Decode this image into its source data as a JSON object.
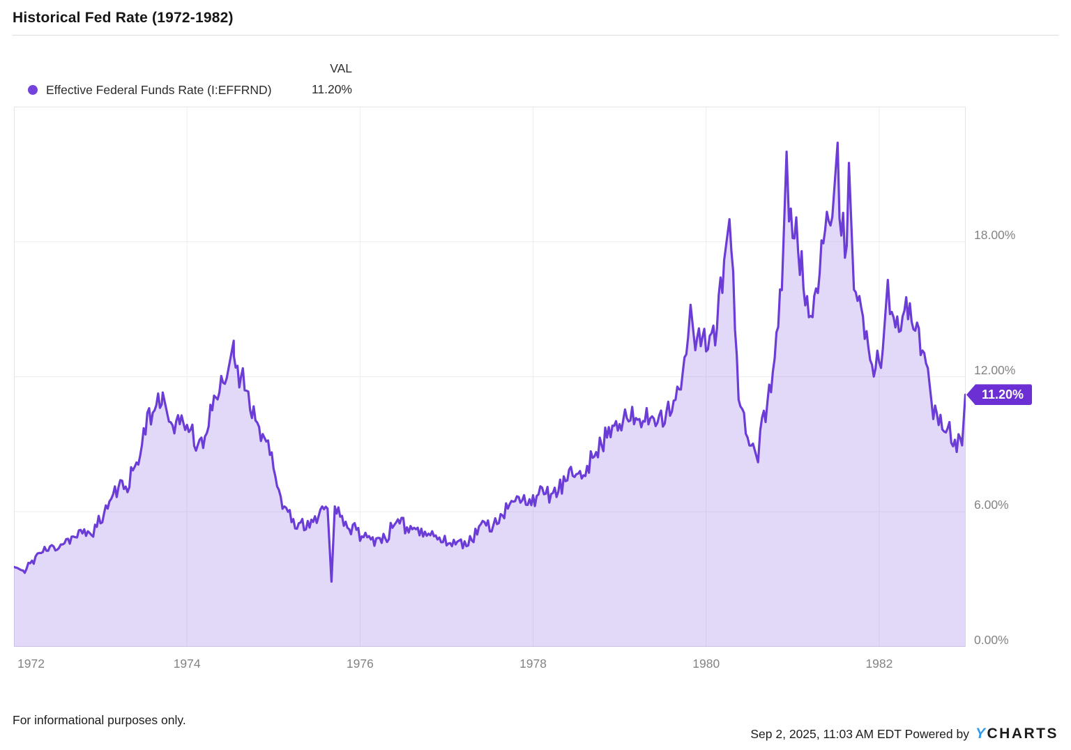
{
  "header": {
    "title": "Historical Fed Rate (1972-1982)"
  },
  "legend": {
    "val_header": "VAL",
    "series": {
      "label": "Effective Federal Funds Rate (I:EFFRND)",
      "value": "11.20%"
    }
  },
  "footer": {
    "disclaimer": "For informational purposes only.",
    "timestamp": "Sep 2, 2025, 11:03 AM EDT",
    "powered_by": "Powered by",
    "brand": {
      "y": "Y",
      "charts": "CHARTS"
    }
  },
  "colors": {
    "line": "#6b3cd6",
    "fill": "rgba(123,80,222,0.22)",
    "badge": "#6c2fd3",
    "legend_dot": "#7443db",
    "grid": "#ededed",
    "plot_border": "#e4e4e4",
    "axis_text": "#838383",
    "brand_blue": "#2e9bf0"
  },
  "chart_data": {
    "type": "area",
    "title": "Historical Fed Rate (1972-1982)",
    "series_name": "Effective Federal Funds Rate (I:EFFRND)",
    "x_axis": {
      "min": 1972,
      "max": 1983,
      "grid": true,
      "ticks": [
        {
          "label": "1972",
          "year": 1972
        },
        {
          "label": "1974",
          "year": 1974
        },
        {
          "label": "1976",
          "year": 1976
        },
        {
          "label": "1978",
          "year": 1978
        },
        {
          "label": "1980",
          "year": 1980
        },
        {
          "label": "1982",
          "year": 1982
        }
      ]
    },
    "y_axis": {
      "min": 0,
      "max": 24,
      "unit": "%",
      "grid": true,
      "ticks": [
        {
          "label": "0.00%",
          "value": 0
        },
        {
          "label": "6.00%",
          "value": 6
        },
        {
          "label": "12.00%",
          "value": 12
        },
        {
          "label": "18.00%",
          "value": 18
        }
      ]
    },
    "start_value": 3.55,
    "monthly_start": "1972-01",
    "monthly_values": [
      3.5,
      3.29,
      3.83,
      4.17,
      4.27,
      4.46,
      4.55,
      4.8,
      4.87,
      5.04,
      5.06,
      5.33,
      5.94,
      6.58,
      7.09,
      7.12,
      7.84,
      8.49,
      10.4,
      10.5,
      10.78,
      10.01,
      10.03,
      9.95,
      9.65,
      8.97,
      9.35,
      10.51,
      11.31,
      11.93,
      12.92,
      12.01,
      11.34,
      10.06,
      9.45,
      8.53,
      7.13,
      6.24,
      5.54,
      5.49,
      5.22,
      5.55,
      6.1,
      6.14,
      6.24,
      5.82,
      5.22,
      5.2,
      4.87,
      4.77,
      4.84,
      4.82,
      5.29,
      5.48,
      5.31,
      5.29,
      5.25,
      5.03,
      4.95,
      4.65,
      4.61,
      4.68,
      4.69,
      4.73,
      5.35,
      5.39,
      5.42,
      5.9,
      6.14,
      6.47,
      6.51,
      6.56,
      6.7,
      6.78,
      6.79,
      6.89,
      7.36,
      7.6,
      7.81,
      8.04,
      8.45,
      8.96,
      9.76,
      10.03,
      10.07,
      10.06,
      10.09,
      10.01,
      10.24,
      10.29,
      10.47,
      10.94,
      11.43,
      13.77,
      13.18,
      13.78,
      13.82,
      14.13,
      17.19,
      17.61,
      10.98,
      9.47,
      9.03,
      9.61,
      10.87,
      12.81,
      15.85,
      18.9,
      19.08,
      15.93,
      14.7,
      15.72,
      18.52,
      19.1,
      19.04,
      17.82,
      15.87,
      15.08,
      13.31,
      12.37,
      13.22,
      14.78,
      14.68,
      14.94,
      14.45,
      14.15,
      12.59,
      10.12,
      10.31,
      9.71,
      9.2,
      8.95
    ],
    "daily_extremes": [
      {
        "x": 1973.72,
        "value": 11.3
      },
      {
        "x": 1974.54,
        "value": 13.6
      },
      {
        "x": 1975.67,
        "value": 2.9
      },
      {
        "x": 1979.82,
        "value": 15.2
      },
      {
        "x": 1980.27,
        "value": 19.0
      },
      {
        "x": 1980.6,
        "value": 8.2
      },
      {
        "x": 1980.93,
        "value": 22.0
      },
      {
        "x": 1981.52,
        "value": 22.4
      },
      {
        "x": 1981.65,
        "value": 21.5
      },
      {
        "x": 1982.1,
        "value": 16.3
      },
      {
        "x": 1982.995,
        "value": 11.2
      }
    ],
    "end_marker": {
      "label": "11.20%",
      "value": 11.2
    },
    "legend_position": "top-left"
  }
}
